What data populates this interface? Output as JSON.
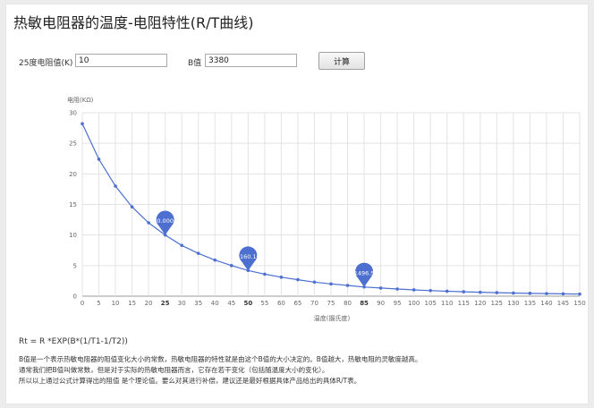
{
  "page": {
    "title": "热敏电阻器的温度-电阻特性(R/T曲线)"
  },
  "form": {
    "r25_label": "25度电阻值(K)",
    "r25_value": "10",
    "b_label": "B值",
    "b_value": "3380",
    "calc_button": "计算"
  },
  "colors": {
    "series": "#4c6fd0",
    "grid": "#e3e3e3",
    "axis_text": "#666666"
  },
  "chart_data": {
    "type": "line",
    "ylabel": "电阻(KΩ)",
    "xlabel": "温度(摄氏度)",
    "xlim": [
      0,
      150
    ],
    "ylim": [
      0,
      30
    ],
    "y_ticks": [
      0,
      5,
      10,
      15,
      20,
      25,
      30
    ],
    "x_ticks": [
      0,
      5,
      10,
      15,
      20,
      25,
      30,
      35,
      40,
      45,
      50,
      55,
      60,
      65,
      70,
      75,
      80,
      85,
      90,
      95,
      100,
      105,
      110,
      115,
      120,
      125,
      130,
      135,
      140,
      145,
      150
    ],
    "bold_ticks": [
      25,
      50,
      85
    ],
    "x": [
      0,
      5,
      10,
      15,
      20,
      25,
      30,
      35,
      40,
      45,
      50,
      55,
      60,
      65,
      70,
      75,
      80,
      85,
      90,
      95,
      100,
      105,
      110,
      115,
      120,
      125,
      130,
      135,
      140,
      145,
      150
    ],
    "values": [
      28.2,
      22.4,
      18.0,
      14.6,
      12.0,
      10.0,
      8.3,
      7.0,
      5.9,
      5.0,
      4.2,
      3.6,
      3.1,
      2.7,
      2.3,
      2.0,
      1.75,
      1.5,
      1.33,
      1.17,
      1.03,
      0.91,
      0.81,
      0.72,
      0.64,
      0.57,
      0.51,
      0.46,
      0.42,
      0.38,
      0.34
    ],
    "markers": [
      {
        "x": 25,
        "y": 10.0,
        "label": "10.0000"
      },
      {
        "x": 50,
        "y": 4.16,
        "label": "4160.16"
      },
      {
        "x": 85,
        "y": 1.5,
        "label": "1496.5"
      }
    ]
  },
  "notes": {
    "formula": "Rt = R *EXP(B*(1/T1-1/T2))",
    "lines": [
      "B值是一个表示热敏电阻器的阻值变化大小的常数，热敏电阻器的特性就是由这个B值的大小决定的。B值越大，热敏电阻的灵敏度越高。",
      "通常我们把B值叫做常数，但是对于实际的热敏电阻器而言，它存在若干变化（包括随温度大小的变化）。",
      "所以以上通过公式计算得出的阻值 是个理论值。要么对其进行补偿，建议还是最好根据具体产品给出的具体R/T表。"
    ]
  }
}
